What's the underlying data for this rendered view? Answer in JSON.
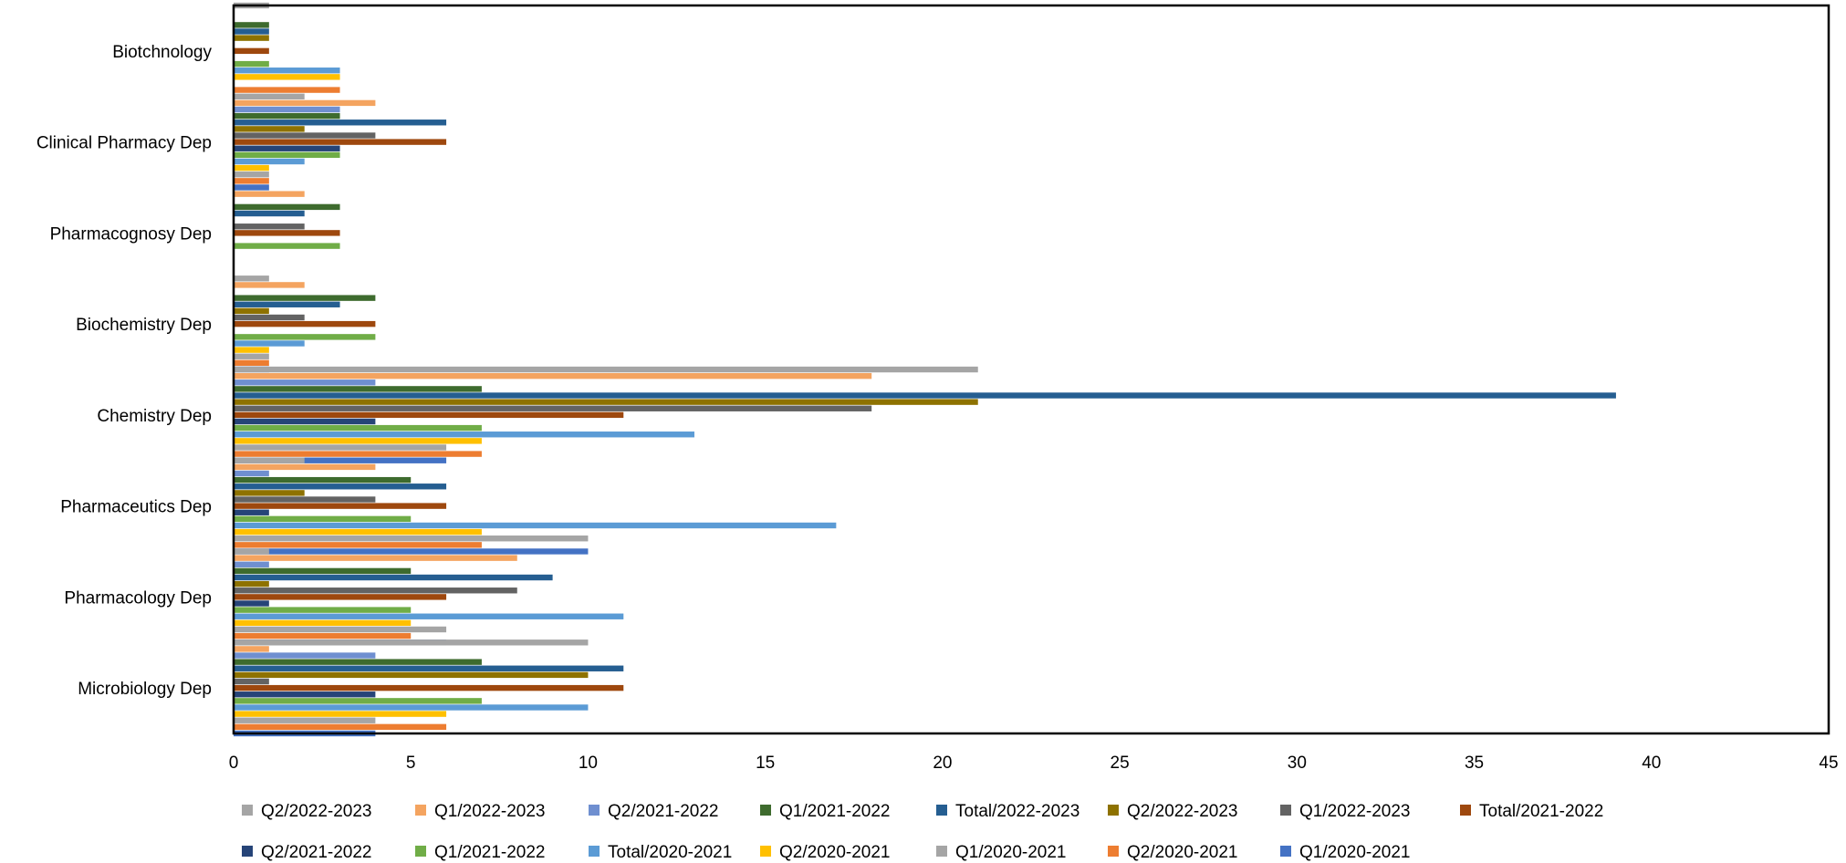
{
  "chart_data": {
    "type": "bar",
    "orientation": "horizontal",
    "title": "",
    "xlabel": "",
    "ylabel": "",
    "xlim": [
      0,
      45
    ],
    "x_ticks": [
      0,
      5,
      10,
      15,
      20,
      25,
      30,
      35,
      40,
      45
    ],
    "grid": false,
    "legend_position": "bottom",
    "categories": [
      "Biotchnology",
      "Clinical Pharmacy Dep",
      "Pharmacognosy Dep",
      "Biochemistry Dep",
      "Chemistry Dep",
      "Pharmaceutics Dep",
      "Pharmacology Dep",
      "Microbiology Dep"
    ],
    "series": [
      {
        "name": "Q2/2022-2023",
        "color": "#A5A5A5",
        "values": [
          1,
          2,
          0,
          1,
          21,
          2,
          1,
          10
        ]
      },
      {
        "name": "Q1/2022-2023",
        "color": "#F4A460",
        "values": [
          0,
          4,
          2,
          2,
          18,
          4,
          8,
          1
        ]
      },
      {
        "name": "Q2/2021-2022",
        "color": "#6F8FD0",
        "values": [
          0,
          3,
          0,
          0,
          4,
          1,
          1,
          4
        ]
      },
      {
        "name": "Q1/2021-2022",
        "color": "#3E6B2E",
        "values": [
          1,
          3,
          3,
          4,
          7,
          5,
          5,
          7
        ]
      },
      {
        "name": "Total/2022-2023",
        "color": "#255E91",
        "values": [
          1,
          6,
          2,
          3,
          39,
          6,
          9,
          11
        ]
      },
      {
        "name": "Q2/2022-2023",
        "color": "#8E7200",
        "values": [
          1,
          2,
          0,
          1,
          21,
          2,
          1,
          10
        ]
      },
      {
        "name": "Q1/2022-2023",
        "color": "#636363",
        "values": [
          0,
          4,
          2,
          2,
          18,
          4,
          8,
          1
        ]
      },
      {
        "name": "Total/2021-2022",
        "color": "#9E480E",
        "values": [
          1,
          6,
          3,
          4,
          11,
          6,
          6,
          11
        ]
      },
      {
        "name": "Q2/2021-2022",
        "color": "#264478",
        "values": [
          0,
          3,
          0,
          0,
          4,
          1,
          1,
          4
        ]
      },
      {
        "name": "Q1/2021-2022",
        "color": "#70AD47",
        "values": [
          1,
          3,
          3,
          4,
          7,
          5,
          5,
          7
        ]
      },
      {
        "name": "Total/2020-2021",
        "color": "#5B9BD5",
        "values": [
          3,
          2,
          0,
          2,
          13,
          17,
          11,
          10
        ]
      },
      {
        "name": "Q2/2020-2021",
        "color": "#FFC000",
        "values": [
          3,
          1,
          0,
          1,
          7,
          7,
          5,
          6
        ]
      },
      {
        "name": "Q1/2020-2021",
        "color": "#A5A5A5",
        "values": [
          0,
          1,
          0,
          1,
          6,
          10,
          6,
          4
        ]
      },
      {
        "name": "Q2/2020-2021",
        "color": "#ED7D31",
        "values": [
          3,
          1,
          0,
          1,
          7,
          7,
          5,
          6
        ]
      },
      {
        "name": "Q1/2020-2021",
        "color": "#4472C4",
        "values": [
          0,
          1,
          0,
          1,
          6,
          10,
          6,
          4
        ]
      }
    ]
  }
}
